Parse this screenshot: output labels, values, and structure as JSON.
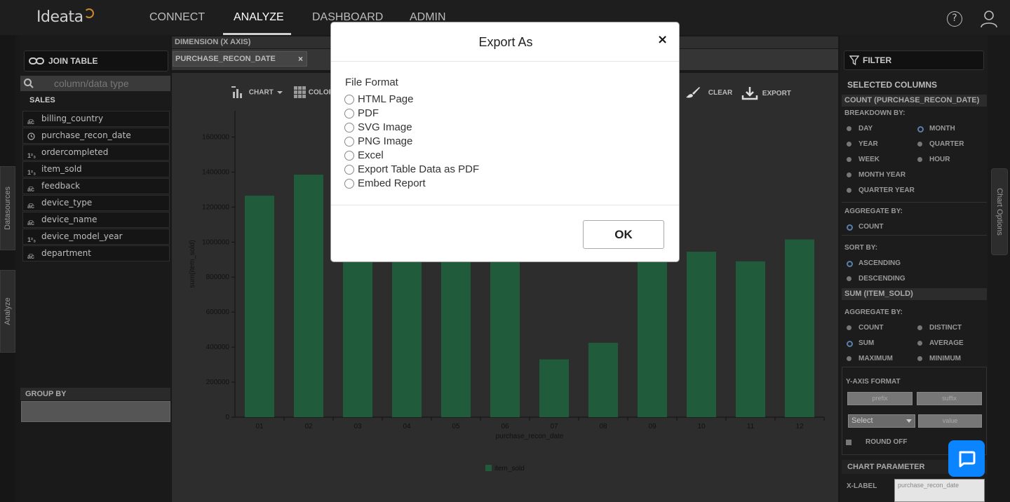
{
  "app": {
    "logo": "Ideata"
  },
  "nav": {
    "connect": "CONNECT",
    "analyze": "ANALYZE",
    "dashboard": "DASHBOARD",
    "admin": "ADMIN"
  },
  "colors": {
    "bar": "#205c3b",
    "accent": "#0a84ff",
    "background": "#1a1919"
  },
  "left": {
    "join_table": "JOIN TABLE",
    "search_placeholder": "column/data type",
    "section": "SALES",
    "fields": [
      {
        "icon": "abc",
        "name": "billing_country"
      },
      {
        "icon": "clock",
        "name": "purchase_recon_date"
      },
      {
        "icon": "123",
        "name": "ordercompleted"
      },
      {
        "icon": "123",
        "name": "item_sold"
      },
      {
        "icon": "abc",
        "name": "feedback"
      },
      {
        "icon": "abc",
        "name": "device_type"
      },
      {
        "icon": "abc",
        "name": "device_name"
      },
      {
        "icon": "123",
        "name": "device_model_year"
      },
      {
        "icon": "abc",
        "name": "department"
      }
    ],
    "group_by": "GROUP BY",
    "datasources_tab": "Datasources",
    "analyze_tab": "Analyze"
  },
  "dimension": {
    "header": "DIMENSION (X AXIS)",
    "chip": "PURCHASE_RECON_DATE",
    "chip_close": "×"
  },
  "toolbar": {
    "chart": "CHART",
    "color": "COLOR",
    "clear": "CLEAR",
    "export": "EXPORT"
  },
  "chart_data": {
    "type": "bar",
    "categories": [
      "01",
      "02",
      "03",
      "04",
      "05",
      "06",
      "07",
      "08",
      "09",
      "10",
      "11",
      "12"
    ],
    "series": [
      {
        "name": "item_sold",
        "values": [
          1265000,
          1385000,
          1150000,
          1100000,
          1090000,
          1120000,
          330000,
          425000,
          1000000,
          945000,
          890000,
          1015000
        ]
      }
    ],
    "xlabel": "purchase_recon_date",
    "ylabel": "sum(item_sold)",
    "ylim": [
      0,
      1750000
    ],
    "yticks": [
      "0",
      "200000",
      "400000",
      "600000",
      "800000",
      "1000000",
      "1200000",
      "1400000",
      "1600000"
    ],
    "legend": "bottom-center"
  },
  "right": {
    "filter": "FILTER",
    "selected_columns": "SELECTED COLUMNS",
    "count_header": "COUNT (PURCHASE_RECON_DATE)",
    "breakdown_by": "BREAKDOWN BY:",
    "breakdown_options": [
      "DAY",
      "MONTH",
      "YEAR",
      "QUARTER",
      "WEEK",
      "HOUR",
      "MONTH YEAR",
      "QUARTER YEAR"
    ],
    "breakdown_selected": "MONTH",
    "aggregate_by": "AGGREGATE BY:",
    "count_agg": "COUNT",
    "sort_by": "SORT BY:",
    "ascending": "ASCENDING",
    "descending": "DESCENDING",
    "sum_header": "SUM (ITEM_SOLD)",
    "sum_aggregate_by": "AGGREGATE BY:",
    "sum_agg_options": [
      "COUNT",
      "DISTINCT",
      "SUM",
      "AVERAGE",
      "MAXIMUM",
      "MINIMUM"
    ],
    "sum_agg_selected": "SUM",
    "yaxis_format": "Y-AXIS FORMAT",
    "prefix": "prefix",
    "suffix": "suffix",
    "select": "Select",
    "value": "value",
    "round_off": "ROUND OFF",
    "chart_parameter": "CHART PARAMETER",
    "x_label": "X-LABEL",
    "x_label_value": "purchase_recon_date",
    "chart_options_tab": "Chart Options"
  },
  "modal": {
    "title": "Export As",
    "close": "×",
    "file_format": "File Format",
    "options": [
      "HTML Page",
      "PDF",
      "SVG Image",
      "PNG Image",
      "Excel",
      "Export Table Data as PDF",
      "Embed Report"
    ],
    "ok": "OK"
  }
}
